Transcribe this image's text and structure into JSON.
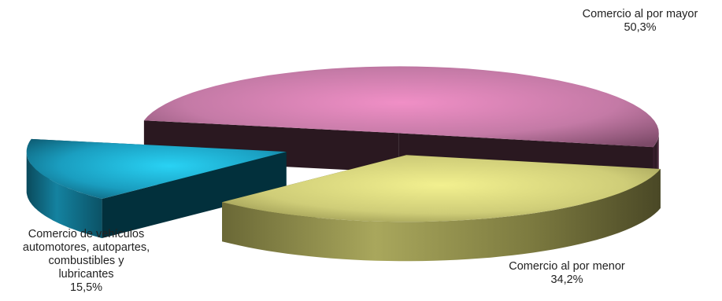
{
  "chart_data": {
    "type": "pie",
    "style": "3d-exploded",
    "slices": [
      {
        "label": "Comercio al por mayor",
        "value": 50.3,
        "value_text": "50,3%",
        "color": "#d77fb0"
      },
      {
        "label": "Comercio al por menor",
        "value": 34.2,
        "value_text": "34,2%",
        "color": "#d2d07a"
      },
      {
        "label": "Comercio de vehículos\nautomotores, autopartes,\ncombustibles y\nlubricantes",
        "value": 15.5,
        "value_text": "15,5%",
        "color": "#1fa4c4"
      }
    ],
    "legend": "none"
  }
}
